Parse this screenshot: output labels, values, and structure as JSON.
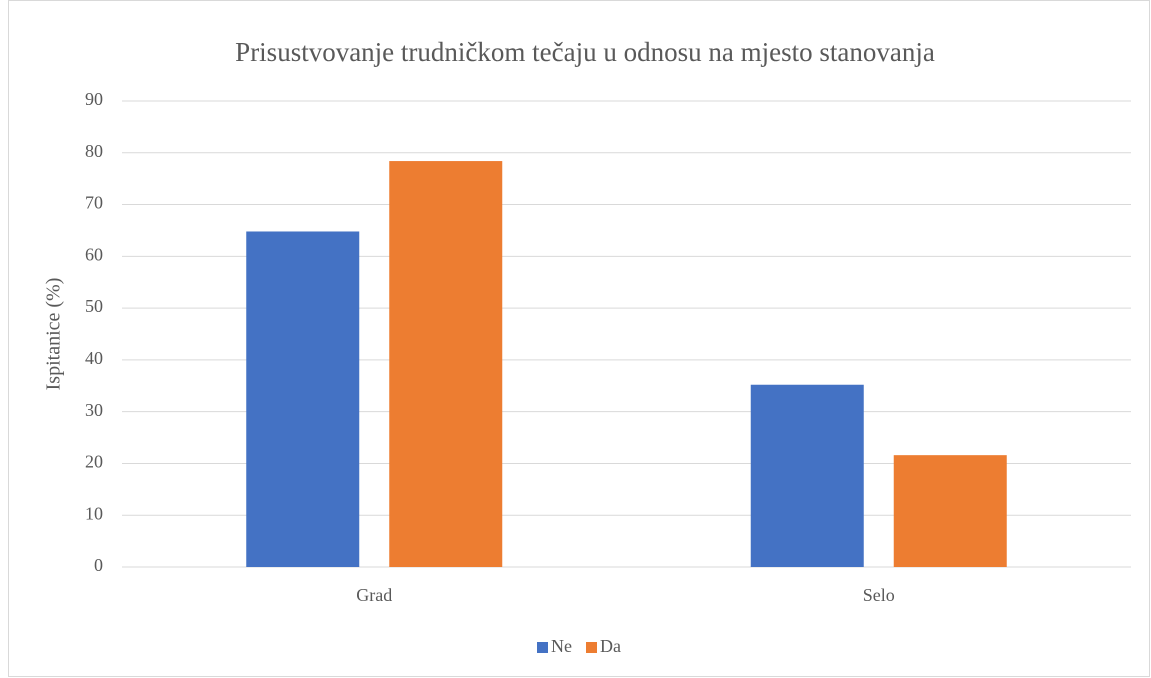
{
  "chart_data": {
    "type": "bar",
    "title": "Prisustvovanje trudničkom tečaju u odnosu na mjesto stanovanja",
    "y_label": "Ispitanice (%)",
    "categories": [
      "Grad",
      "Selo"
    ],
    "series": [
      {
        "name": "Ne",
        "color": "#4472c4",
        "values": [
          64.8,
          35.2
        ]
      },
      {
        "name": "Da",
        "color": "#ed7d31",
        "values": [
          78.4,
          21.6
        ]
      }
    ],
    "ylim": [
      0,
      90
    ],
    "yticks": [
      0,
      10,
      20,
      30,
      40,
      50,
      60,
      70,
      80,
      90
    ],
    "grid": true,
    "legend": "bottom"
  }
}
